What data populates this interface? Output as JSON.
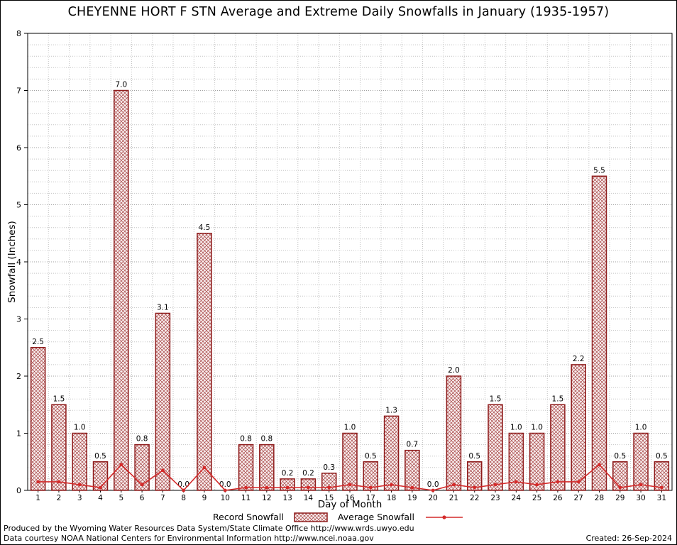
{
  "chart_data": {
    "type": "bar",
    "title": "CHEYENNE HORT F STN Average and Extreme Daily Snowfalls in January (1935-1957)",
    "xlabel": "Day of Month",
    "ylabel": "Snowfall (Inches)",
    "ylim": [
      0,
      8
    ],
    "y_major_step": 1,
    "y_minor_step": 0.2,
    "grid": true,
    "legend_position": "bottom-center",
    "categories": [
      1,
      2,
      3,
      4,
      5,
      6,
      7,
      8,
      9,
      10,
      11,
      12,
      13,
      14,
      15,
      16,
      17,
      18,
      19,
      20,
      21,
      22,
      23,
      24,
      25,
      26,
      27,
      28,
      29,
      30,
      31
    ],
    "series": [
      {
        "name": "Record Snowfall",
        "type": "bar",
        "values": [
          2.5,
          1.5,
          1.0,
          0.5,
          7.0,
          0.8,
          3.1,
          0.0,
          4.5,
          0.0,
          0.8,
          0.8,
          0.2,
          0.2,
          0.3,
          1.0,
          0.5,
          1.3,
          0.7,
          0.0,
          2.0,
          0.5,
          1.5,
          1.0,
          1.0,
          1.5,
          2.2,
          5.5,
          0.5,
          1.0,
          0.5
        ]
      },
      {
        "name": "Average Snowfall",
        "type": "line",
        "values": [
          0.15,
          0.15,
          0.1,
          0.05,
          0.45,
          0.1,
          0.35,
          0.0,
          0.4,
          0.0,
          0.05,
          0.05,
          0.05,
          0.05,
          0.05,
          0.1,
          0.05,
          0.1,
          0.05,
          0.0,
          0.1,
          0.05,
          0.1,
          0.15,
          0.1,
          0.15,
          0.15,
          0.45,
          0.05,
          0.1,
          0.05
        ]
      }
    ],
    "colors": {
      "bar_stroke": "#8e1b1b",
      "bar_fill": "#f9efef",
      "bar_hatch": "#a64545",
      "line": "#d42a2a",
      "grid_minor": "#c4c4c4",
      "grid_major": "#a0a0a0",
      "axis": "#000000",
      "text": "#000000"
    }
  },
  "footer": {
    "line1": "Produced by the Wyoming Water Resources Data System/State Climate Office http://www.wrds.uwyo.edu",
    "line2": "Data courtesy NOAA National Centers for Environmental Information http://www.ncei.noaa.gov",
    "created": "Created: 26-Sep-2024"
  }
}
